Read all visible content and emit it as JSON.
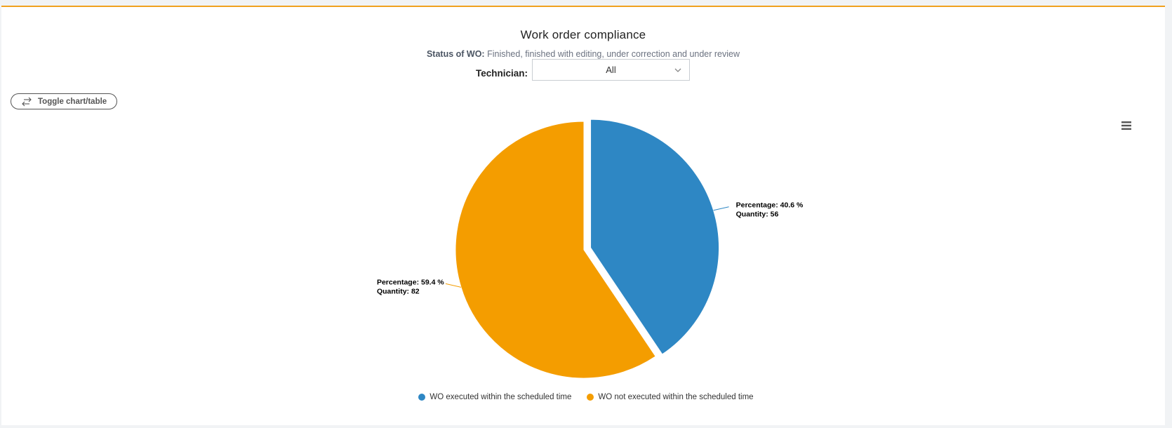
{
  "title": "Work order compliance",
  "subtitle": {
    "label": "Status of WO:",
    "text": "Finished, finished with editing, under correction and under review"
  },
  "filter": {
    "label": "Technician:",
    "value": "All"
  },
  "toggle_button": "Toggle chart/table",
  "chart_data": {
    "type": "pie",
    "title": "Work order compliance",
    "series": [
      {
        "name": "WO executed within the scheduled time",
        "percentage": 40.6,
        "quantity": 56,
        "color": "#2e87c4",
        "label_line1": "Percentage: 40.6 %",
        "label_line2": "Quantity: 56",
        "sliced": true
      },
      {
        "name": "WO not executed within the scheduled time",
        "percentage": 59.4,
        "quantity": 82,
        "color": "#f49d00",
        "label_line1": "Percentage: 59.4 %",
        "label_line2": "Quantity: 82",
        "sliced": false
      }
    ],
    "legend_position": "bottom-center"
  }
}
